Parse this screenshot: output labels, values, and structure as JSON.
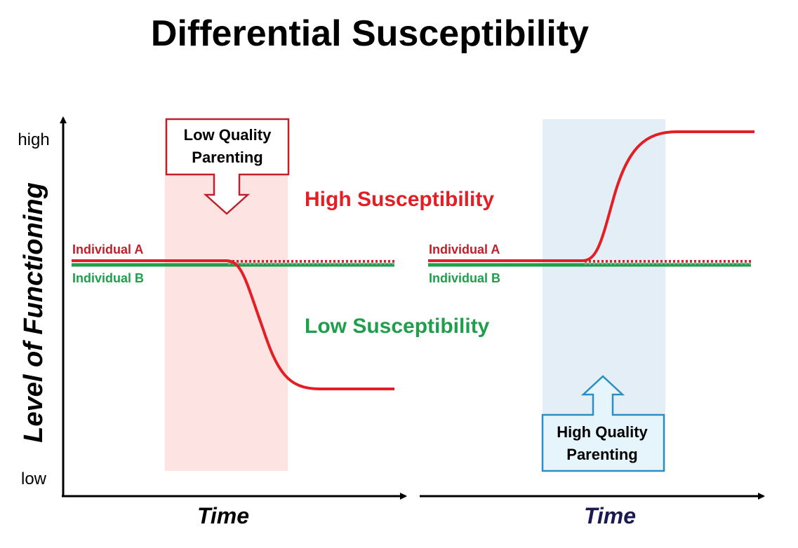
{
  "title": "Differential Susceptibility",
  "y_axis": {
    "label": "Level of Functioning",
    "tick_high": "high",
    "tick_low": "low"
  },
  "x_axis": {
    "left_label": "Time",
    "right_label": "Time"
  },
  "legend": {
    "high_susceptibility": "High Susceptibility",
    "low_susceptibility": "Low Susceptibility"
  },
  "left_panel": {
    "individual_a": "Individual A",
    "individual_b": "Individual B",
    "callout_line1": "Low Quality",
    "callout_line2": "Parenting"
  },
  "right_panel": {
    "individual_a": "Individual A",
    "individual_b": "Individual B",
    "callout_line1": "High Quality",
    "callout_line2": "Parenting"
  },
  "colors": {
    "individual_a": "#e31e24",
    "individual_b": "#1f9e4c",
    "low_quality_band": "#fde3e1",
    "high_quality_band": "#e3eef7",
    "low_callout_border": "#c0202a",
    "high_callout_border": "#2a8fc0",
    "high_callout_fill": "#e6f4fb",
    "right_time_label": "#1a1a50"
  }
}
